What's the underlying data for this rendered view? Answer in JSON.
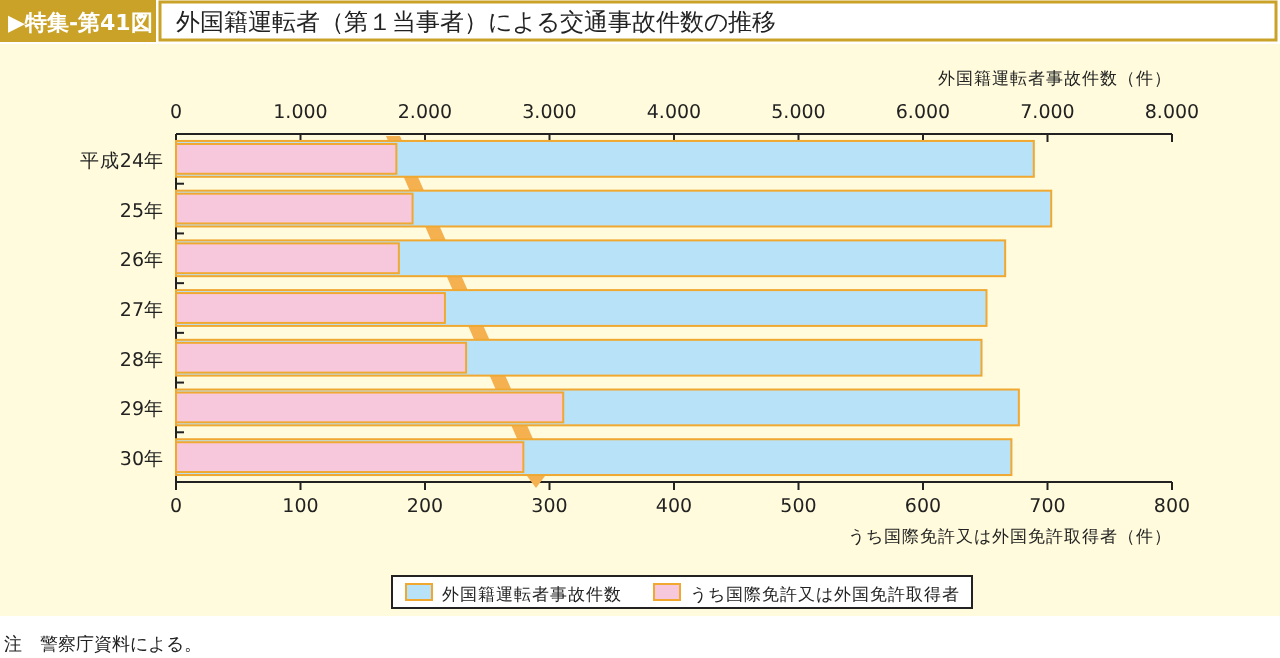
{
  "chart_data": {
    "type": "bar",
    "orientation": "horizontal",
    "title": "外国籍運転者（第１当事者）による交通事故件数の推移",
    "categories": [
      "平成24年",
      "25年",
      "26年",
      "27年",
      "28年",
      "29年",
      "30年"
    ],
    "series": [
      {
        "name": "外国籍運転者事故件数",
        "color": "#b8e2f8",
        "axis": "x2",
        "values": [
          6890,
          7030,
          6660,
          6510,
          6470,
          6770,
          6710
        ]
      },
      {
        "name": "うち国際免許又は外国免許取得者",
        "color": "#f7c8dc",
        "values": [
          177,
          190,
          179,
          216,
          233,
          311,
          279
        ]
      }
    ],
    "xlabel": "うち国際免許又は外国免許取得者（件）",
    "x2label": "外国籍運転者事故件数（件）",
    "xlim": [
      0,
      800
    ],
    "xticks": [
      0,
      100,
      200,
      300,
      400,
      500,
      600,
      700,
      800
    ],
    "x2lim": [
      0,
      8000
    ],
    "x2ticks": [
      0,
      {
        "value": 1000,
        "label": "1.000"
      },
      {
        "value": 2000,
        "label": "2.000"
      },
      {
        "value": 3000,
        "label": "3.000"
      },
      {
        "value": 4000,
        "label": "4.000"
      },
      {
        "value": 5000,
        "label": "5.000"
      },
      {
        "value": 6000,
        "label": "6.000"
      },
      {
        "value": 7000,
        "label": "7.000"
      },
      {
        "value": 8000,
        "label": "8.000"
      }
    ],
    "legend": "bottom",
    "annotations": [
      "▶特集-第41図",
      "注　警察庁資料による。"
    ]
  }
}
